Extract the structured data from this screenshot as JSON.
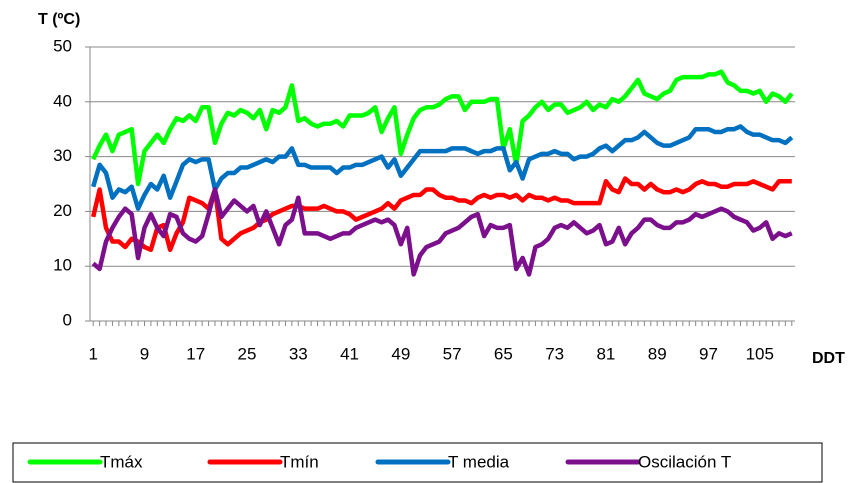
{
  "chart_data": {
    "type": "line",
    "y_label": "T (ºC)",
    "x_label": "DDT",
    "x": [
      1,
      2,
      3,
      4,
      5,
      6,
      7,
      8,
      9,
      10,
      11,
      12,
      13,
      14,
      15,
      16,
      17,
      18,
      19,
      20,
      21,
      22,
      23,
      24,
      25,
      26,
      27,
      28,
      29,
      30,
      31,
      32,
      33,
      34,
      35,
      36,
      37,
      38,
      39,
      40,
      41,
      42,
      43,
      44,
      45,
      46,
      47,
      48,
      49,
      50,
      51,
      52,
      53,
      54,
      55,
      56,
      57,
      58,
      59,
      60,
      61,
      62,
      63,
      64,
      65,
      66,
      67,
      68,
      69,
      70,
      71,
      72,
      73,
      74,
      75,
      76,
      77,
      78,
      79,
      80,
      81,
      82,
      83,
      84,
      85,
      86,
      87,
      88,
      89,
      90,
      91,
      92,
      93,
      94,
      95,
      96,
      97,
      98,
      99,
      100,
      101,
      102,
      103,
      104,
      105,
      106,
      107,
      108,
      109,
      110
    ],
    "xlim": [
      0.5,
      110.5
    ],
    "xticks": [
      1,
      9,
      17,
      25,
      33,
      41,
      49,
      57,
      65,
      73,
      81,
      89,
      97,
      105
    ],
    "ylim": [
      0,
      50
    ],
    "yticks": [
      0,
      10,
      20,
      30,
      40,
      50
    ],
    "grid": true,
    "legend": "bottom",
    "series": [
      {
        "name": "Tmáx",
        "color": "#00ff00",
        "values": [
          29.5,
          32,
          34,
          31,
          34,
          34.5,
          35,
          25,
          31,
          32.5,
          34,
          32.5,
          35,
          37,
          36.5,
          37.5,
          36.5,
          39,
          39,
          32.5,
          36,
          38,
          37.5,
          38.5,
          38,
          37,
          38.5,
          35,
          38.5,
          38,
          39,
          43,
          36.5,
          37,
          36,
          35.5,
          36,
          36,
          36.5,
          35.5,
          37.5,
          37.5,
          37.5,
          38,
          39,
          34.5,
          37,
          39,
          30.5,
          34,
          37,
          38.5,
          39,
          39,
          39.5,
          40.5,
          41,
          41,
          38.5,
          40,
          40,
          40,
          40.5,
          40.5,
          31.5,
          35,
          28.5,
          36.5,
          37.5,
          39,
          40,
          38.5,
          39.5,
          39.5,
          38,
          38.5,
          39,
          40,
          38.5,
          39.5,
          39,
          40.5,
          40,
          41,
          42.5,
          44,
          41.5,
          41,
          40.5,
          41.5,
          42,
          44,
          44.5,
          44.5,
          44.5,
          44.5,
          45,
          45,
          45.5,
          43.5,
          43,
          42,
          42,
          41.5,
          42,
          40,
          41.5,
          41,
          40,
          41.5
        ]
      },
      {
        "name": "Tmín",
        "color": "#ff0000",
        "values": [
          19,
          24,
          17,
          14.5,
          14.5,
          13.5,
          15,
          14.5,
          13.5,
          13,
          17,
          17.5,
          13,
          16,
          18,
          22.5,
          22,
          21.5,
          20.5,
          24,
          15,
          14,
          15,
          16,
          16.5,
          17,
          18,
          18.5,
          19.5,
          20,
          20.5,
          21,
          21,
          20.5,
          20.5,
          20.5,
          21,
          20.5,
          20,
          20,
          19.5,
          18.5,
          19,
          19.5,
          20,
          20.5,
          21.5,
          20.5,
          22,
          22.5,
          23,
          23,
          24,
          24,
          23,
          22.5,
          22.5,
          22,
          22,
          21.5,
          22.5,
          23,
          22.5,
          23,
          23,
          22.5,
          23,
          22,
          23,
          22.5,
          22.5,
          22,
          22.5,
          22,
          22,
          21.5,
          21.5,
          21.5,
          21.5,
          21.5,
          25.5,
          24,
          23.5,
          26,
          25,
          25,
          24,
          25,
          24,
          23.5,
          23.5,
          24,
          23.5,
          24,
          25,
          25.5,
          25,
          25,
          24.5,
          24.5,
          25,
          25,
          25,
          25.5,
          25,
          24.5,
          24,
          25.5,
          25.5,
          25.5
        ]
      },
      {
        "name": "T media",
        "color": "#0070c0",
        "values": [
          24.5,
          28.5,
          27,
          22.5,
          24,
          23.5,
          24.5,
          20.5,
          23,
          25,
          24,
          26.5,
          22.5,
          25.5,
          28.5,
          29.5,
          29,
          29.5,
          29.5,
          24,
          26,
          27,
          27,
          28,
          28,
          28.5,
          29,
          29.5,
          29,
          30,
          30,
          31.5,
          28.5,
          28.5,
          28,
          28,
          28,
          28,
          27,
          28,
          28,
          28.5,
          28.5,
          29,
          29.5,
          30,
          28,
          29.5,
          26.5,
          28,
          29.5,
          31,
          31,
          31,
          31,
          31,
          31.5,
          31.5,
          31.5,
          31,
          30.5,
          31,
          31,
          31.5,
          31.5,
          27.5,
          29,
          26,
          29.5,
          30,
          30.5,
          30.5,
          31,
          30.5,
          30.5,
          29.5,
          30,
          30,
          30.5,
          31.5,
          32,
          31,
          32,
          33,
          33,
          33.5,
          34.5,
          33.5,
          32.5,
          32,
          32,
          32.5,
          33,
          33.5,
          35,
          35,
          35,
          34.5,
          34.5,
          35,
          35,
          35.5,
          34.5,
          34,
          34,
          33.5,
          33,
          33,
          32.5,
          33.5
        ]
      },
      {
        "name": "Oscilación T",
        "color": "#7b0f8c",
        "values": [
          10.5,
          9.5,
          14.5,
          17,
          19,
          20.5,
          19.5,
          11.5,
          17,
          19.5,
          17,
          15.5,
          19.5,
          19,
          16,
          15,
          14.5,
          15.5,
          19.5,
          24,
          19,
          20.5,
          22,
          21,
          20,
          21,
          17.5,
          20,
          17,
          14,
          17.5,
          18.5,
          22.5,
          16,
          16,
          16,
          15.5,
          15,
          15.5,
          16,
          16,
          17,
          17.5,
          18,
          18.5,
          18,
          18.5,
          17.5,
          14,
          17,
          8.5,
          12,
          13.5,
          14,
          14.5,
          16,
          16.5,
          17,
          18,
          19,
          19.5,
          15.5,
          17.5,
          17,
          17,
          17.5,
          9.5,
          11.5,
          8.5,
          13.5,
          14,
          15,
          17,
          17.5,
          17,
          18,
          17,
          16,
          16.5,
          17.5,
          14,
          14.5,
          17,
          14,
          16,
          17,
          18.5,
          18.5,
          17.5,
          17,
          17,
          18,
          18,
          18.5,
          19.5,
          19,
          19.5,
          20,
          20.5,
          20,
          19,
          18.5,
          18,
          16.5,
          17,
          18,
          15,
          16,
          15.5,
          16
        ]
      }
    ]
  }
}
